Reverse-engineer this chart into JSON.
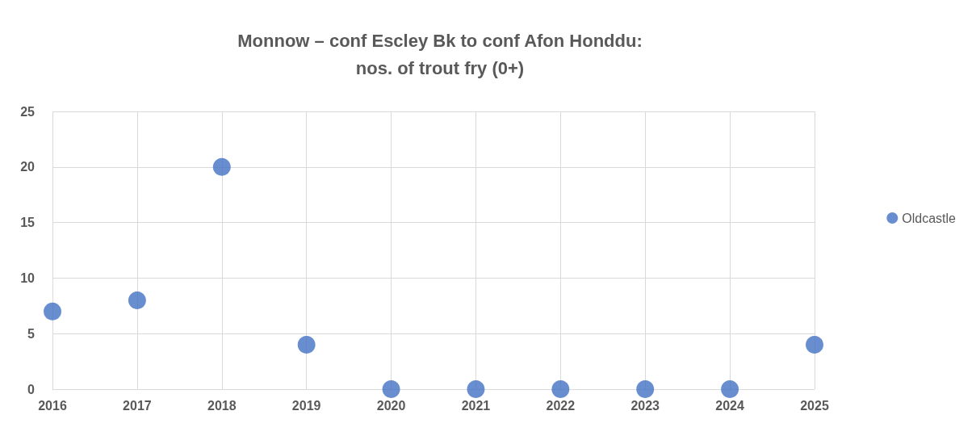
{
  "chart_data": {
    "type": "scatter",
    "title": "Monnow – conf Escley Bk to conf Afon Honddu:\nnos. of trout fry (0+)",
    "x": [
      2016,
      2017,
      2018,
      2019,
      2020,
      2021,
      2022,
      2023,
      2024,
      2025
    ],
    "series": [
      {
        "name": "Oldcastle",
        "color": "#4472c4",
        "values": [
          7,
          8,
          20,
          4,
          0,
          0,
          0,
          0,
          0,
          4
        ]
      }
    ],
    "xlim": [
      2016,
      2025
    ],
    "xticks": [
      2016,
      2017,
      2018,
      2019,
      2020,
      2021,
      2022,
      2023,
      2024,
      2025
    ],
    "ylim": [
      0,
      25
    ],
    "yticks": [
      0,
      5,
      10,
      15,
      20,
      25
    ],
    "grid": true,
    "legend": "right",
    "marker": "circle"
  }
}
